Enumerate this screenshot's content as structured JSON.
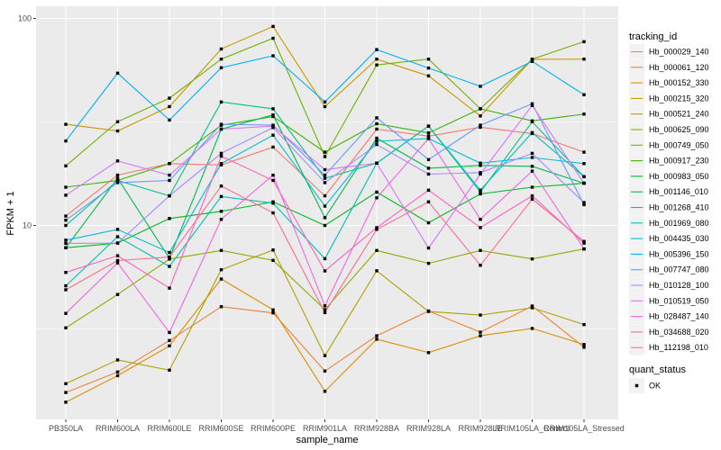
{
  "chart_data": {
    "type": "line",
    "xlabel": "sample_name",
    "ylabel": "FPKM + 1",
    "y_scale": "log10",
    "y_ticks": [
      10,
      100
    ],
    "ylim": [
      1.2,
      100
    ],
    "grid": true,
    "categories": [
      "PB350LA",
      "RRIM600LA",
      "RRIM600LE",
      "RRIM600SE",
      "RRIM600PE",
      "RRIM901LA",
      "RRIM928BA",
      "RRIM928LA",
      "RRIM928LE",
      "RRIM105LA_Control",
      "RRIM105LA_Stressed"
    ],
    "legend": {
      "position": "right",
      "color_title": "tracking_id",
      "shape_title": "quant_status",
      "shape_items": [
        "OK"
      ]
    },
    "series": [
      {
        "name": "Hb_000029_140",
        "color": "#F8766D",
        "values": [
          11.1,
          17.5,
          19.9,
          19.6,
          23.9,
          13.9,
          29.2,
          27.0,
          29.8,
          27.8,
          22.6
        ]
      },
      {
        "name": "Hb_000061_120",
        "color": "#EC823C",
        "values": [
          1.56,
          1.96,
          2.78,
          4.05,
          3.78,
          1.98,
          2.93,
          3.86,
          3.05,
          4.08,
          2.58
        ]
      },
      {
        "name": "Hb_000152_330",
        "color": "#DB8E00",
        "values": [
          1.4,
          1.88,
          2.62,
          5.51,
          3.91,
          1.58,
          2.82,
          2.43,
          2.93,
          3.18,
          2.66
        ]
      },
      {
        "name": "Hb_000215_320",
        "color": "#C79800",
        "values": [
          30.8,
          28.6,
          37.5,
          71.2,
          91.5,
          37.5,
          63.6,
          52.8,
          33.8,
          63.5,
          63.6
        ]
      },
      {
        "name": "Hb_000521_240",
        "color": "#AFA100",
        "values": [
          1.72,
          2.24,
          2.0,
          6.11,
          7.61,
          2.35,
          6.04,
          3.84,
          3.69,
          4.0,
          3.32
        ]
      },
      {
        "name": "Hb_000625_090",
        "color": "#93AA00",
        "values": [
          3.2,
          4.64,
          6.88,
          7.57,
          6.78,
          3.92,
          7.57,
          6.56,
          7.57,
          6.89,
          7.7
        ]
      },
      {
        "name": "Hb_000749_050",
        "color": "#72B000",
        "values": [
          19.4,
          31.7,
          41.2,
          63.6,
          80.2,
          21.5,
          59.6,
          63.6,
          36.6,
          63.6,
          77.2
        ]
      },
      {
        "name": "Hb_000917_230",
        "color": "#3BB300",
        "values": [
          15.3,
          16.5,
          19.9,
          30.5,
          33.6,
          22.6,
          31.0,
          28.0,
          36.6,
          32.0,
          34.5
        ]
      },
      {
        "name": "Hb_000983_050",
        "color": "#00B81F",
        "values": [
          7.8,
          8.22,
          10.8,
          11.7,
          13.0,
          10.0,
          14.5,
          10.3,
          14.2,
          15.3,
          16.0
        ]
      },
      {
        "name": "Hb_001146_010",
        "color": "#00BB4E",
        "values": [
          7.8,
          16.9,
          6.93,
          29.2,
          34.2,
          10.9,
          26.4,
          18.9,
          19.5,
          19.3,
          16.0
        ]
      },
      {
        "name": "Hb_001268_410",
        "color": "#00C08B",
        "values": [
          10.0,
          16.5,
          13.9,
          39.5,
          36.6,
          16.9,
          20.0,
          30.2,
          14.5,
          31.7,
          17.2
        ]
      },
      {
        "name": "Hb_001969_080",
        "color": "#00BFB1",
        "values": [
          5.11,
          8.82,
          6.34,
          13.8,
          12.8,
          6.91,
          20.0,
          30.2,
          14.8,
          28.1,
          17.2
        ]
      },
      {
        "name": "Hb_004435_030",
        "color": "#00BCD8",
        "values": [
          8.49,
          9.57,
          7.4,
          19.9,
          27.3,
          12.4,
          25.5,
          26.3,
          20.0,
          21.3,
          19.9
        ]
      },
      {
        "name": "Hb_005396_150",
        "color": "#00B0F6",
        "values": [
          25.6,
          54.4,
          32.3,
          57.8,
          66.0,
          39.5,
          70.7,
          57.6,
          47.0,
          62.0,
          42.8
        ]
      },
      {
        "name": "Hb_007747_080",
        "color": "#619CFF",
        "values": [
          10.6,
          16.1,
          16.5,
          30.8,
          30.5,
          17.5,
          33.1,
          20.8,
          30.5,
          38.7,
          12.6
        ]
      },
      {
        "name": "Hb_010128_100",
        "color": "#A58AFF",
        "values": [
          8.19,
          8.22,
          13.9,
          22.3,
          29.7,
          16.1,
          24.6,
          17.7,
          18.0,
          22.3,
          12.9
        ]
      },
      {
        "name": "Hb_010519_050",
        "color": "#D774FF",
        "values": [
          14.0,
          20.5,
          17.5,
          29.2,
          30.2,
          18.6,
          20.0,
          7.78,
          17.7,
          38.0,
          16.0
        ]
      },
      {
        "name": "Hb_028487_140",
        "color": "#F365E6",
        "values": [
          3.76,
          6.59,
          3.04,
          10.7,
          17.5,
          4.09,
          13.6,
          26.3,
          10.7,
          18.3,
          7.7
        ]
      },
      {
        "name": "Hb_034688_020",
        "color": "#FF62BC",
        "values": [
          5.93,
          7.14,
          4.98,
          21.6,
          16.5,
          6.03,
          9.76,
          14.8,
          9.76,
          13.9,
          8.21
        ]
      },
      {
        "name": "Hb_112198_010",
        "color": "#FF6C91",
        "values": [
          4.89,
          6.77,
          7.04,
          15.5,
          11.5,
          3.79,
          9.57,
          13.0,
          6.42,
          13.4,
          8.37
        ]
      }
    ]
  }
}
